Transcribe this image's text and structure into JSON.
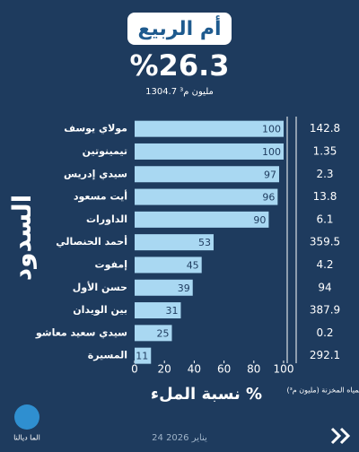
{
  "chart_data": {
    "type": "bar",
    "orientation": "horizontal",
    "title": "أم الربيع",
    "headline": "%26.3",
    "subtitle": "1304.7 مليون م³",
    "y_label": "السدود",
    "x_label": "نسبة الملء %",
    "categories": [
      "مولاي يوسف",
      "تيمينوتين",
      "سيدي إدريس",
      "أيت مسعود",
      "الداورات",
      "أحمد الحنصالي",
      "إمفوت",
      "حسن الأول",
      "بين الويدان",
      "سيدي سعيد معاشو",
      "المسيرة"
    ],
    "values": [
      100,
      100,
      97,
      96,
      90,
      53,
      45,
      39,
      31,
      25,
      11
    ],
    "color": "#a9d8f2",
    "stored_header": "المياه المخزنة (مليون م³)",
    "stored": [
      142.8,
      1.35,
      2.3,
      13.8,
      6.1,
      359.5,
      4.2,
      94,
      387.9,
      0.2,
      292.1
    ],
    "xlim": [
      0,
      100
    ],
    "xticks": [
      0,
      20,
      40,
      60,
      80,
      100
    ],
    "date": "24 يناير 2026",
    "logo": "الما ديالنا"
  }
}
